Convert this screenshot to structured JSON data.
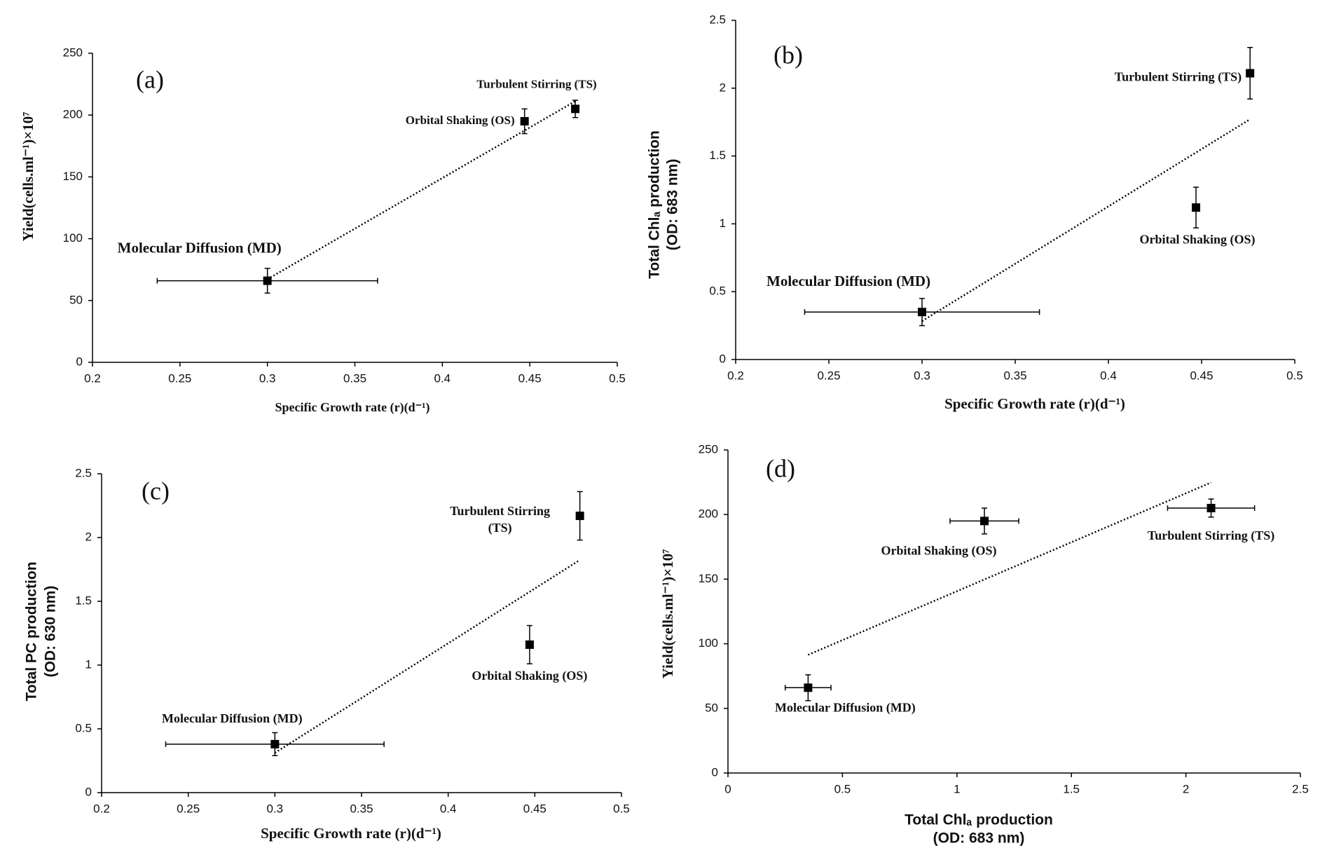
{
  "chart_data": [
    {
      "type": "scatter",
      "panel_label": "(a)",
      "x_label": "Specific Growth rate (r)(d⁻¹)",
      "y_label": [
        "Yield(cells.ml⁻¹)×10⁷"
      ],
      "xlim": [
        0.2,
        0.5
      ],
      "xticks": [
        0.2,
        0.25,
        0.3,
        0.35,
        0.4,
        0.45,
        0.5
      ],
      "ylim": [
        0,
        250
      ],
      "yticks": [
        0,
        50,
        100,
        150,
        200,
        250
      ],
      "trendline": true,
      "color": "#000000",
      "series": [
        {
          "name": "Molecular Diffusion (MD)",
          "x": [
            0.3
          ],
          "values": [
            66
          ],
          "x_error": [
            0.063
          ],
          "y_error": [
            10
          ]
        },
        {
          "name": "Orbital Shaking (OS)",
          "x": [
            0.447
          ],
          "values": [
            195
          ],
          "x_error": [
            0
          ],
          "y_error": [
            10
          ]
        },
        {
          "name": "Turbulent Stirring (TS)",
          "x": [
            0.476
          ],
          "values": [
            205
          ],
          "x_error": [
            0
          ],
          "y_error": [
            7
          ]
        }
      ]
    },
    {
      "type": "scatter",
      "panel_label": "(b)",
      "x_label": "Specific Growth rate (r)(d⁻¹)",
      "y_label": [
        "Total Chlₐ production",
        "(OD: 683 nm)"
      ],
      "xlim": [
        0.2,
        0.5
      ],
      "xticks": [
        0.2,
        0.25,
        0.3,
        0.35,
        0.4,
        0.45,
        0.5
      ],
      "ylim": [
        0,
        2.5
      ],
      "yticks": [
        0,
        0.5,
        1,
        1.5,
        2,
        2.5
      ],
      "trendline": true,
      "color": "#000000",
      "series": [
        {
          "name": "Molecular Diffusion (MD)",
          "x": [
            0.3
          ],
          "values": [
            0.35
          ],
          "x_error": [
            0.063
          ],
          "y_error": [
            0.1
          ]
        },
        {
          "name": "Orbital Shaking (OS)",
          "x": [
            0.447
          ],
          "values": [
            1.12
          ],
          "x_error": [
            0
          ],
          "y_error": [
            0.15
          ]
        },
        {
          "name": "Turbulent Stirring (TS)",
          "x": [
            0.476
          ],
          "values": [
            2.11
          ],
          "x_error": [
            0
          ],
          "y_error": [
            0.19
          ]
        }
      ]
    },
    {
      "type": "scatter",
      "panel_label": "(c)",
      "x_label": "Specific Growth rate (r)(d⁻¹)",
      "y_label": [
        "Total PC production",
        "(OD: 630 nm)"
      ],
      "xlim": [
        0.2,
        0.5
      ],
      "xticks": [
        0.2,
        0.25,
        0.3,
        0.35,
        0.4,
        0.45,
        0.5
      ],
      "ylim": [
        0,
        2.5
      ],
      "yticks": [
        0,
        0.5,
        1,
        1.5,
        2,
        2.5
      ],
      "trendline": true,
      "color": "#000000",
      "series": [
        {
          "name": "Molecular Diffusion (MD)",
          "x": [
            0.3
          ],
          "values": [
            0.38
          ],
          "x_error": [
            0.063
          ],
          "y_error": [
            0.09
          ]
        },
        {
          "name": "Orbital Shaking (OS)",
          "x": [
            0.447
          ],
          "values": [
            1.16
          ],
          "x_error": [
            0
          ],
          "y_error": [
            0.15
          ]
        },
        {
          "name": [
            "Turbulent Stirring",
            "(TS)"
          ],
          "x": [
            0.476
          ],
          "values": [
            2.17
          ],
          "x_error": [
            0
          ],
          "y_error": [
            0.19
          ]
        }
      ]
    },
    {
      "type": "scatter",
      "panel_label": "(d)",
      "x_label": [
        "Total Chlₐ production",
        "(OD: 683 nm)"
      ],
      "y_label": [
        "Yield(cells.ml⁻¹)×10⁷"
      ],
      "xlim": [
        0,
        2.5
      ],
      "xticks": [
        0,
        0.5,
        1,
        1.5,
        2,
        2.5
      ],
      "ylim": [
        0,
        250
      ],
      "yticks": [
        0,
        50,
        100,
        150,
        200,
        250
      ],
      "trendline": true,
      "color": "#000000",
      "series": [
        {
          "name": "Molecular Diffusion (MD)",
          "x": [
            0.35
          ],
          "values": [
            66
          ],
          "x_error": [
            0.1
          ],
          "y_error": [
            10
          ]
        },
        {
          "name": "Orbital Shaking (OS)",
          "x": [
            1.12
          ],
          "values": [
            195
          ],
          "x_error": [
            0.15
          ],
          "y_error": [
            10
          ]
        },
        {
          "name": "Turbulent Stirring (TS)",
          "x": [
            2.11
          ],
          "values": [
            205
          ],
          "x_error": [
            0.19
          ],
          "y_error": [
            7
          ]
        }
      ]
    }
  ]
}
